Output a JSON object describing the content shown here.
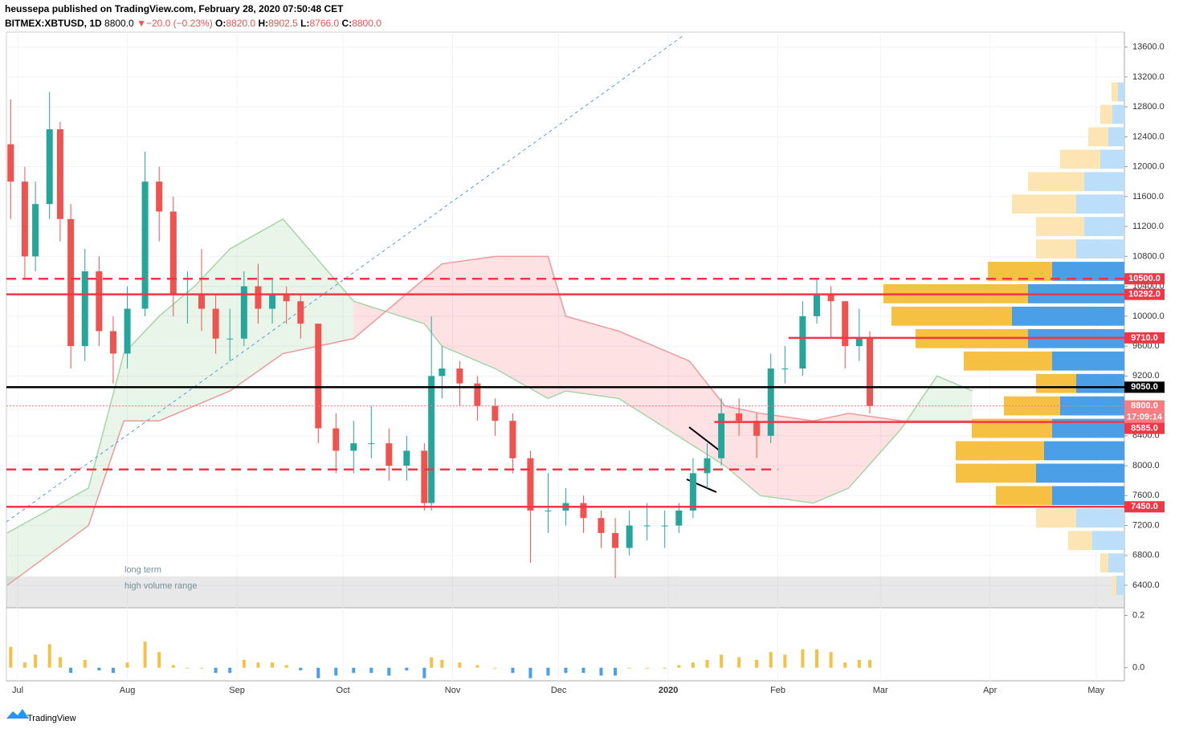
{
  "header": {
    "publisher": "heussepa published on TradingView.com, February 28, 2020 07:50:48 CET",
    "symbol": "BITMEX:XBTUSD, 1D",
    "last": "8800.0",
    "arrow": "▼",
    "change": "−20.0 (−0.23%)",
    "o_label": "O:",
    "o": "8820.0",
    "h_label": "H:",
    "h": "8902.5",
    "l_label": "L:",
    "l": "8766.0",
    "c_label": "C:",
    "c": "8800.0"
  },
  "footer": {
    "brand": "TradingView"
  },
  "chart_data": {
    "type": "candlestick",
    "x": [
      -2,
      2,
      5,
      9,
      12,
      15,
      19,
      23,
      27,
      31,
      36,
      40,
      44,
      48,
      52,
      56,
      60,
      64,
      68,
      72,
      76,
      80,
      85,
      90,
      95,
      100,
      105,
      110,
      115,
      117,
      120,
      125,
      130,
      135,
      140,
      145,
      150,
      155,
      160,
      165,
      169,
      173,
      178,
      183,
      187,
      191,
      195,
      199,
      204,
      209,
      213,
      217,
      222,
      226,
      230,
      234,
      238,
      241
    ],
    "open": [
      12300,
      11800,
      10800,
      11500,
      12500,
      11300,
      9600,
      10600,
      9800,
      9500,
      10100,
      11800,
      11400,
      10300,
      10300,
      10100,
      9700,
      9700,
      10400,
      10100,
      10300,
      10200,
      9900,
      8500,
      8200,
      8300,
      8300,
      8000,
      8200,
      7500,
      9200,
      9300,
      9100,
      8800,
      8600,
      8100,
      7400,
      7400,
      7500,
      7300,
      7100,
      6900,
      7200,
      7200,
      7200,
      7400,
      7900,
      8100,
      8700,
      8600,
      8400,
      9300,
      9300,
      10000,
      10300,
      10200,
      9600,
      9700
    ],
    "high": [
      12900,
      12000,
      11800,
      13000,
      12600,
      11500,
      10900,
      10800,
      10000,
      10400,
      12200,
      12000,
      11600,
      10600,
      10900,
      10300,
      10100,
      10600,
      10700,
      10500,
      10400,
      10300,
      9900,
      8700,
      8600,
      8800,
      8500,
      8400,
      8300,
      10000,
      9600,
      9400,
      9200,
      8900,
      8700,
      8200,
      7900,
      7700,
      7600,
      7400,
      7300,
      7400,
      7500,
      7400,
      7500,
      8100,
      8300,
      8900,
      8900,
      8700,
      9500,
      9600,
      10200,
      10500,
      10400,
      10200,
      10100,
      9800
    ],
    "low": [
      11300,
      10500,
      10600,
      11300,
      11000,
      9300,
      9400,
      9600,
      9100,
      9300,
      10000,
      11000,
      10000,
      9900,
      9800,
      9500,
      9400,
      9600,
      9900,
      9900,
      9900,
      9700,
      8300,
      7900,
      7900,
      8100,
      7800,
      7800,
      7400,
      7400,
      8900,
      8800,
      8600,
      8400,
      7900,
      6700,
      7100,
      7200,
      7100,
      6900,
      6500,
      6800,
      7000,
      6900,
      7100,
      7300,
      7700,
      8000,
      8400,
      8100,
      8300,
      9100,
      9200,
      9900,
      9700,
      9300,
      9400,
      8700
    ],
    "close": [
      11800,
      10800,
      11500,
      12500,
      11300,
      9600,
      10600,
      9800,
      9500,
      10100,
      11800,
      11400,
      10300,
      10300,
      10100,
      9700,
      9700,
      10400,
      10100,
      10300,
      10200,
      9900,
      8500,
      8200,
      8300,
      8300,
      8000,
      8200,
      7500,
      9200,
      9300,
      9100,
      8800,
      8600,
      8100,
      7400,
      7400,
      7500,
      7300,
      7100,
      6900,
      7200,
      7200,
      7200,
      7400,
      7900,
      8100,
      8700,
      8600,
      8400,
      9300,
      9300,
      10000,
      10300,
      10200,
      9600,
      9700,
      8800
    ],
    "up_color": "#26a69a",
    "down_color": "#ef5350",
    "oscillator": [
      0.08,
      0.02,
      0.05,
      0.09,
      0.04,
      -0.02,
      0.03,
      -0.01,
      -0.02,
      0.02,
      0.1,
      0.06,
      0.01,
      0.0,
      0.0,
      -0.02,
      -0.02,
      0.03,
      0.02,
      0.02,
      0.01,
      -0.01,
      -0.04,
      -0.03,
      -0.02,
      -0.02,
      -0.03,
      -0.01,
      -0.04,
      0.04,
      0.03,
      0.02,
      0.01,
      0.0,
      -0.02,
      -0.04,
      -0.03,
      -0.02,
      -0.02,
      -0.03,
      -0.03,
      0.0,
      0.0,
      0.0,
      0.01,
      0.02,
      0.03,
      0.05,
      0.04,
      0.03,
      0.06,
      0.05,
      0.07,
      0.07,
      0.06,
      0.02,
      0.03,
      0.03
    ],
    "osc_ylim": [
      -0.05,
      0.22
    ],
    "osc_yticks": [
      {
        "value": 0,
        "label": "0.0"
      },
      0.2
    ],
    "cloud_x": [
      -3,
      20,
      30,
      40,
      50,
      60,
      75,
      95,
      115,
      120,
      135,
      150,
      155,
      170,
      190,
      200,
      210,
      225,
      235,
      250,
      260,
      270
    ],
    "span_a": [
      7100,
      7700,
      9500,
      10000,
      10400,
      10900,
      11300,
      10200,
      9900,
      9600,
      9300,
      8900,
      9000,
      8900,
      8300,
      8000,
      7600,
      7500,
      7700,
      8500,
      9200,
      9000
    ],
    "span_b": [
      6400,
      7200,
      8600,
      8600,
      8800,
      9000,
      9500,
      9700,
      10500,
      10700,
      10800,
      10800,
      10000,
      9800,
      9400,
      8800,
      8700,
      8600,
      8700,
      8600,
      8600,
      8600
    ],
    "ylim": [
      6100,
      13800
    ],
    "yticks": [
      {
        "value": 6400,
        "label": "6400.0"
      },
      {
        "value": 6800,
        "label": "6800.0"
      },
      {
        "value": 7200,
        "label": "7200.0"
      },
      {
        "value": 7600,
        "label": "7600.0"
      },
      {
        "value": 8000,
        "label": "8000.0"
      },
      {
        "value": 8400,
        "label": "8400.0"
      },
      {
        "value": 8800,
        "label": "8800.0"
      },
      {
        "value": 9200,
        "label": "9200.0"
      },
      {
        "value": 9600,
        "label": "9600.0"
      },
      {
        "value": 10000,
        "label": "10000.0"
      },
      {
        "value": 10400,
        "label": "10400.0"
      },
      {
        "value": 10800,
        "label": "10800.0"
      },
      {
        "value": 11200,
        "label": "11200.0"
      },
      {
        "value": 11600,
        "label": "11600.0"
      },
      {
        "value": 12000,
        "label": "12000.0"
      },
      {
        "value": 12400,
        "label": "12400.0"
      },
      {
        "value": 12800,
        "label": "12800.0"
      },
      {
        "value": 13200,
        "label": "13200.0"
      },
      {
        "value": 13600,
        "label": "13600.0"
      }
    ],
    "xlim": [
      -3.2,
      313
    ],
    "xticks": [
      {
        "value": 0,
        "label": "Jul"
      },
      {
        "value": 31,
        "label": "Aug"
      },
      {
        "value": 62,
        "label": "Sep"
      },
      {
        "value": 92,
        "label": "Oct"
      },
      {
        "value": 123,
        "label": "Nov"
      },
      {
        "value": 153,
        "label": "Dec"
      },
      {
        "value": 184,
        "label": "2020"
      },
      {
        "value": 215,
        "label": "Feb"
      },
      {
        "value": 244,
        "label": "Mar"
      },
      {
        "value": 275,
        "label": "Apr"
      },
      {
        "value": 305,
        "label": "May"
      }
    ],
    "levels": [
      {
        "value": 10500,
        "label": "10500.0",
        "color": "#f23645",
        "style": "dashed"
      },
      {
        "value": 10292,
        "label": "10292.0",
        "color": "#f23645",
        "style": "solid"
      },
      {
        "value": 9710,
        "label": "9710.0",
        "color": "#f23645",
        "style": "solid",
        "from": 218
      },
      {
        "value": 9050,
        "label": "9050.0",
        "color": "#000000",
        "style": "solid"
      },
      {
        "value": 8800,
        "label": "8800.0",
        "color": "#f77c80",
        "style": "dotted"
      },
      {
        "value": 8585,
        "label": "8585.0",
        "color": "#f23645",
        "style": "solid",
        "from": 197
      },
      {
        "value": 7950,
        "color": "#f23645",
        "style": "dashed",
        "to": 215
      },
      {
        "value": 7450,
        "label": "7450.0",
        "color": "#f23645",
        "style": "solid"
      }
    ],
    "countdown": "17:09:14",
    "annotation": [
      "long term",
      "high volume range"
    ],
    "volume_profile": {
      "levels": [
        6400,
        6700,
        7000,
        7300,
        7600,
        7900,
        8200,
        8500,
        8800,
        9100,
        9400,
        9700,
        10000,
        10300,
        10600,
        10900,
        11200,
        11500,
        11800,
        12100,
        12400,
        12700,
        13000
      ],
      "up": [
        10,
        20,
        40,
        60,
        90,
        110,
        100,
        90,
        80,
        60,
        90,
        120,
        140,
        120,
        90,
        60,
        50,
        60,
        50,
        30,
        20,
        15,
        8
      ],
      "down": [
        5,
        10,
        30,
        50,
        70,
        100,
        110,
        100,
        70,
        50,
        110,
        140,
        150,
        180,
        80,
        50,
        60,
        80,
        70,
        50,
        25,
        15,
        8
      ],
      "value_area": [
        7600,
        10800
      ]
    }
  }
}
